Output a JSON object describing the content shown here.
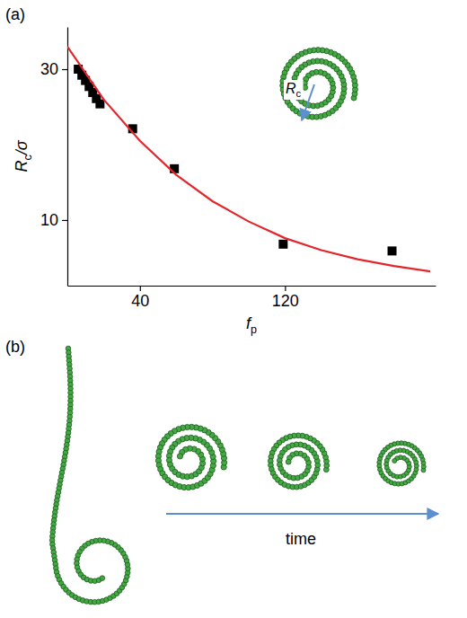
{
  "chart_data": {
    "type": "scatter",
    "panel_label": "(a)",
    "xlabel": "fp",
    "ylabel": "Rc/σ",
    "annotation": "Rc",
    "xlim": [
      0,
      203
    ],
    "ylim": [
      1.3,
      35.6
    ],
    "xticks": [
      40,
      120
    ],
    "yticks": [
      10,
      30
    ],
    "series": [
      {
        "type": "scatter",
        "marker": "square",
        "color": "#000000",
        "x": [
          6,
          8,
          10,
          12,
          14,
          16,
          18,
          36,
          59,
          119,
          179
        ],
        "values": [
          30.0,
          29.2,
          28.5,
          27.7,
          26.9,
          26.1,
          25.4,
          22.1,
          16.8,
          6.8,
          5.9
        ]
      },
      {
        "type": "line",
        "line_style": "solid",
        "color": "#e3262b",
        "x": [
          0,
          20,
          40,
          60,
          80,
          100,
          120,
          140,
          160,
          180,
          200
        ],
        "values": [
          33,
          26,
          20.5,
          16,
          12.5,
          9.8,
          7.6,
          6,
          4.8,
          3.9,
          3.2
        ]
      }
    ]
  },
  "panel_b": {
    "label": "(b)",
    "arrow_label": "time"
  }
}
